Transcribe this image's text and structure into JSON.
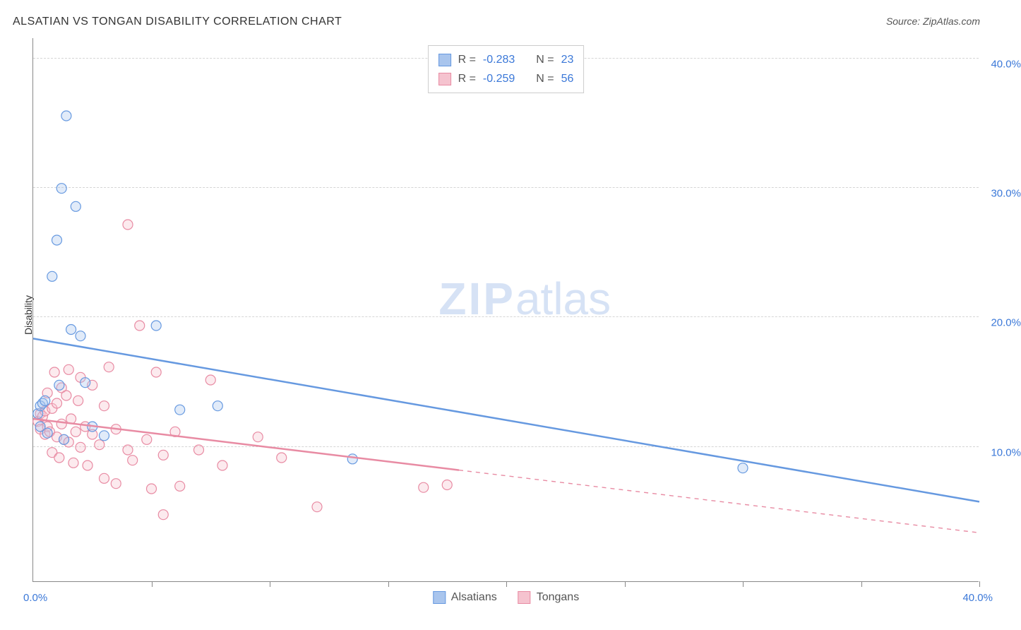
{
  "title": "ALSATIAN VS TONGAN DISABILITY CORRELATION CHART",
  "source": "Source: ZipAtlas.com",
  "ylabel": "Disability",
  "chart": {
    "type": "scatter",
    "xlim": [
      0,
      40
    ],
    "ylim": [
      0,
      42
    ],
    "x_tick_positions": [
      0,
      5,
      10,
      15,
      20,
      25,
      30,
      35,
      40
    ],
    "x_tick_labels_shown": {
      "0": "0.0%",
      "40": "40.0%"
    },
    "y_gridlines": [
      10.5,
      20.5,
      30.5,
      40.5
    ],
    "y_tick_labels": {
      "10": "10.0%",
      "20": "20.0%",
      "30": "30.0%",
      "40": "40.0%"
    },
    "background_color": "#ffffff",
    "grid_color": "#d5d5d5",
    "axis_color": "#888888",
    "label_color": "#3b78d8",
    "marker_radius": 7,
    "marker_stroke_width": 1.2,
    "marker_fill_opacity": 0.35,
    "trend_line_width": 2.5,
    "series": [
      {
        "name": "Alsatians",
        "color_fill": "#a9c5ed",
        "color_stroke": "#6699e0",
        "r": "-0.283",
        "n": "23",
        "trend": {
          "x1": 0,
          "y1": 18.8,
          "x2": 40,
          "y2": 6.2,
          "solid_until_x": 40
        },
        "points": [
          [
            0.2,
            13.0
          ],
          [
            0.3,
            13.6
          ],
          [
            0.3,
            12.0
          ],
          [
            0.4,
            13.8
          ],
          [
            0.5,
            14.0
          ],
          [
            0.6,
            11.5
          ],
          [
            0.8,
            23.6
          ],
          [
            1.0,
            26.4
          ],
          [
            1.1,
            15.2
          ],
          [
            1.2,
            30.4
          ],
          [
            1.3,
            11.0
          ],
          [
            1.4,
            36.0
          ],
          [
            1.6,
            19.5
          ],
          [
            1.8,
            29.0
          ],
          [
            2.0,
            19.0
          ],
          [
            2.2,
            15.4
          ],
          [
            2.5,
            12.0
          ],
          [
            3.0,
            11.3
          ],
          [
            5.2,
            19.8
          ],
          [
            6.2,
            13.3
          ],
          [
            7.8,
            13.6
          ],
          [
            13.5,
            9.5
          ],
          [
            30.0,
            8.8
          ]
        ]
      },
      {
        "name": "Tongans",
        "color_fill": "#f5c3cf",
        "color_stroke": "#e88ba3",
        "r": "-0.259",
        "n": "56",
        "trend": {
          "x1": 0,
          "y1": 12.6,
          "x2": 40,
          "y2": 3.8,
          "solid_until_x": 18
        },
        "points": [
          [
            0.2,
            12.4
          ],
          [
            0.3,
            13.0
          ],
          [
            0.3,
            11.8
          ],
          [
            0.4,
            12.8
          ],
          [
            0.5,
            13.2
          ],
          [
            0.5,
            11.4
          ],
          [
            0.6,
            12.0
          ],
          [
            0.6,
            14.6
          ],
          [
            0.7,
            11.6
          ],
          [
            0.8,
            10.0
          ],
          [
            0.8,
            13.4
          ],
          [
            0.9,
            16.2
          ],
          [
            1.0,
            11.2
          ],
          [
            1.0,
            13.8
          ],
          [
            1.1,
            9.6
          ],
          [
            1.2,
            12.2
          ],
          [
            1.2,
            15.0
          ],
          [
            1.3,
            11.0
          ],
          [
            1.4,
            14.4
          ],
          [
            1.5,
            10.8
          ],
          [
            1.5,
            16.4
          ],
          [
            1.6,
            12.6
          ],
          [
            1.7,
            9.2
          ],
          [
            1.8,
            11.6
          ],
          [
            1.9,
            14.0
          ],
          [
            2.0,
            10.4
          ],
          [
            2.0,
            15.8
          ],
          [
            2.2,
            12.0
          ],
          [
            2.3,
            9.0
          ],
          [
            2.5,
            11.4
          ],
          [
            2.5,
            15.2
          ],
          [
            2.8,
            10.6
          ],
          [
            3.0,
            8.0
          ],
          [
            3.0,
            13.6
          ],
          [
            3.2,
            16.6
          ],
          [
            3.5,
            11.8
          ],
          [
            3.5,
            7.6
          ],
          [
            4.0,
            10.2
          ],
          [
            4.0,
            27.6
          ],
          [
            4.2,
            9.4
          ],
          [
            4.5,
            19.8
          ],
          [
            4.8,
            11.0
          ],
          [
            5.0,
            7.2
          ],
          [
            5.2,
            16.2
          ],
          [
            5.5,
            9.8
          ],
          [
            5.5,
            5.2
          ],
          [
            6.0,
            11.6
          ],
          [
            6.2,
            7.4
          ],
          [
            7.0,
            10.2
          ],
          [
            7.5,
            15.6
          ],
          [
            8.0,
            9.0
          ],
          [
            9.5,
            11.2
          ],
          [
            10.5,
            9.6
          ],
          [
            12.0,
            5.8
          ],
          [
            16.5,
            7.3
          ],
          [
            17.5,
            7.5
          ]
        ]
      }
    ]
  },
  "legend_top": {
    "r_label": "R =",
    "n_label": "N ="
  },
  "legend_bottom": {
    "items": [
      "Alsatians",
      "Tongans"
    ]
  },
  "watermark": {
    "zip": "ZIP",
    "atlas": "atlas"
  }
}
